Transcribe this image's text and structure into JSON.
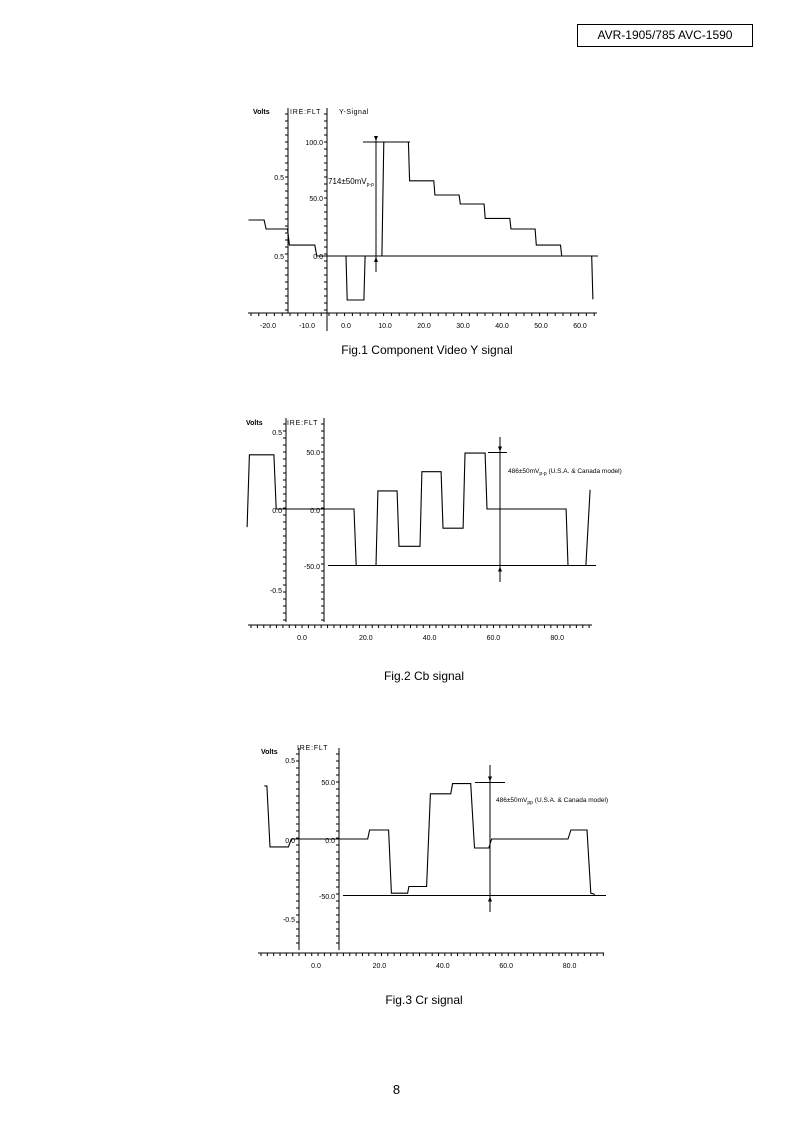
{
  "header": {
    "model": "AVR-1905/785 AVC-1590"
  },
  "page_number": "8",
  "chart_data": [
    {
      "type": "line",
      "title": "Fig.1 Component Video Y signal",
      "signal_label": "Y-Signal",
      "volts_label": "Volts",
      "ire_label": "IRE:FLT",
      "volts_ticks": [
        "0.5",
        "0.5"
      ],
      "ire_ticks": [
        "100.0",
        "50.0",
        "0.0"
      ],
      "x_ticks": [
        "-20.0",
        "-10.0",
        "0.0",
        "10.0",
        "20.0",
        "30.0",
        "40.0",
        "50.0",
        "60.0"
      ],
      "x_tick_values": [
        -20,
        -10,
        0,
        10,
        20,
        30,
        40,
        50,
        60
      ],
      "annotation": "714±50mV",
      "annotation_sub": "p-p",
      "points": [
        [
          -25,
          31.6
        ],
        [
          -21,
          31.6
        ],
        [
          -20.5,
          23.7
        ],
        [
          -15,
          23.7
        ],
        [
          -14.5,
          9.6
        ],
        [
          -8,
          9.6
        ],
        [
          -7.5,
          0
        ],
        [
          0,
          0
        ],
        [
          0.3,
          -38.6
        ],
        [
          4.6,
          -38.6
        ],
        [
          4.9,
          0
        ],
        [
          9.2,
          0
        ],
        [
          9.7,
          100
        ],
        [
          16,
          100
        ],
        [
          16.3,
          66
        ],
        [
          22.5,
          66
        ],
        [
          22.8,
          53.5
        ],
        [
          29,
          53.5
        ],
        [
          29.3,
          45.6
        ],
        [
          35.4,
          45.6
        ],
        [
          35.7,
          33
        ],
        [
          42,
          33
        ],
        [
          42.3,
          23.7
        ],
        [
          48.5,
          23.7
        ],
        [
          48.8,
          9.6
        ],
        [
          55,
          9.6
        ],
        [
          55.3,
          0
        ],
        [
          63,
          0
        ],
        [
          63.3,
          -38
        ]
      ]
    },
    {
      "type": "line",
      "title": "Fig.2 Cb signal",
      "volts_label": "Volts",
      "ire_label": "IRE:FLT",
      "volts_ticks": [
        "0.5",
        "0.0",
        "-0.5"
      ],
      "ire_ticks": [
        "50.0",
        "0.0",
        "-50.0"
      ],
      "x_ticks": [
        "0.0",
        "20.0",
        "40.0",
        "60.0",
        "80.0"
      ],
      "x_tick_values": [
        0,
        20,
        40,
        60,
        80
      ],
      "annotation": "486±50mV",
      "annotation_sub": "p-p",
      "annotation_note": "(U.S.A. & Canada model)",
      "points": [
        [
          -17.2,
          -16
        ],
        [
          -16.5,
          48
        ],
        [
          -8.8,
          48
        ],
        [
          -8.1,
          0
        ],
        [
          16.3,
          0
        ],
        [
          17,
          -50
        ],
        [
          23.2,
          -50
        ],
        [
          23.8,
          16
        ],
        [
          29.8,
          16
        ],
        [
          30.4,
          -33
        ],
        [
          37,
          -33
        ],
        [
          37.6,
          33
        ],
        [
          43.6,
          33
        ],
        [
          44.2,
          -17
        ],
        [
          50.5,
          -17
        ],
        [
          51.1,
          49.5
        ],
        [
          57.4,
          49.5
        ],
        [
          58,
          0
        ],
        [
          82.8,
          0
        ],
        [
          83.4,
          -50
        ],
        [
          89,
          -50
        ],
        [
          90.3,
          17
        ]
      ]
    },
    {
      "type": "line",
      "title": "Fig.3 Cr signal",
      "volts_label": "Volts",
      "ire_label": "IRE:FLT",
      "volts_ticks": [
        "0.5",
        "0.0",
        "-0.5"
      ],
      "ire_ticks": [
        "50.0",
        "0.0",
        "-50.0"
      ],
      "x_ticks": [
        "0.0",
        "20.0",
        "40.0",
        "60.0",
        "80.0"
      ],
      "x_tick_values": [
        0,
        20,
        40,
        60,
        80
      ],
      "annotation": "486±50mV",
      "annotation_sub": "pp",
      "annotation_note": "(U.S.A. & Canada model)",
      "points": [
        [
          -16.3,
          47
        ],
        [
          -15.5,
          47
        ],
        [
          -14.5,
          -7
        ],
        [
          -8.7,
          -7
        ],
        [
          -7.8,
          0
        ],
        [
          16.3,
          0
        ],
        [
          16.9,
          8
        ],
        [
          22.9,
          8
        ],
        [
          23.8,
          -48
        ],
        [
          28.9,
          -48
        ],
        [
          29.3,
          -42
        ],
        [
          34.9,
          -42
        ],
        [
          36.1,
          40
        ],
        [
          42.5,
          40
        ],
        [
          43.1,
          49
        ],
        [
          48.8,
          49
        ],
        [
          50,
          -8
        ],
        [
          54.5,
          -8
        ],
        [
          55.4,
          0
        ],
        [
          79.5,
          0
        ],
        [
          80.4,
          8
        ],
        [
          85.5,
          8
        ],
        [
          86.7,
          -48
        ],
        [
          88,
          -49
        ]
      ]
    }
  ]
}
